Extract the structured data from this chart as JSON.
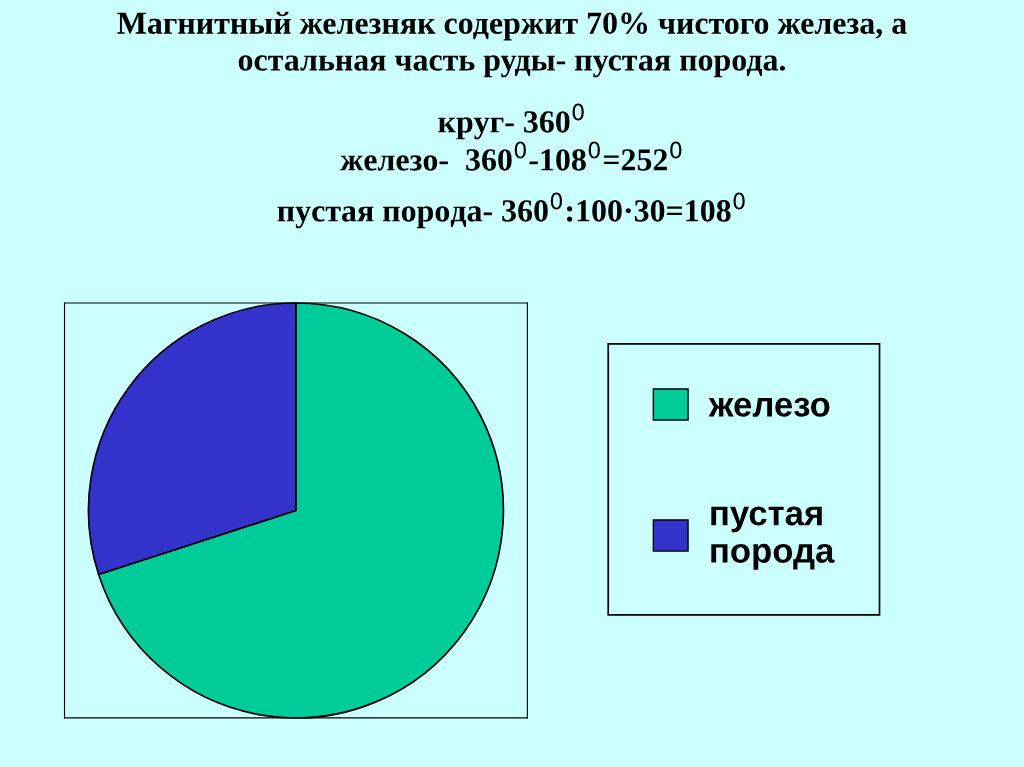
{
  "chart_data": {
    "type": "pie",
    "title": "Магнитный железняк содержит 70% чистого железа, а\nостальная часть руды- пустая порода.",
    "annotations": [
      "круг- 360$^{0}$",
      "железо-  360$^{0}$-108$^{0}$=252$^{0}$",
      "пустая порода- 360$^{0}$:100·30=108$^{0}$"
    ],
    "categories": [
      "железо",
      "пустая порода"
    ],
    "values": [
      70,
      30
    ],
    "colors": [
      "#00cc99",
      "#3333cc"
    ],
    "legend": "right"
  }
}
